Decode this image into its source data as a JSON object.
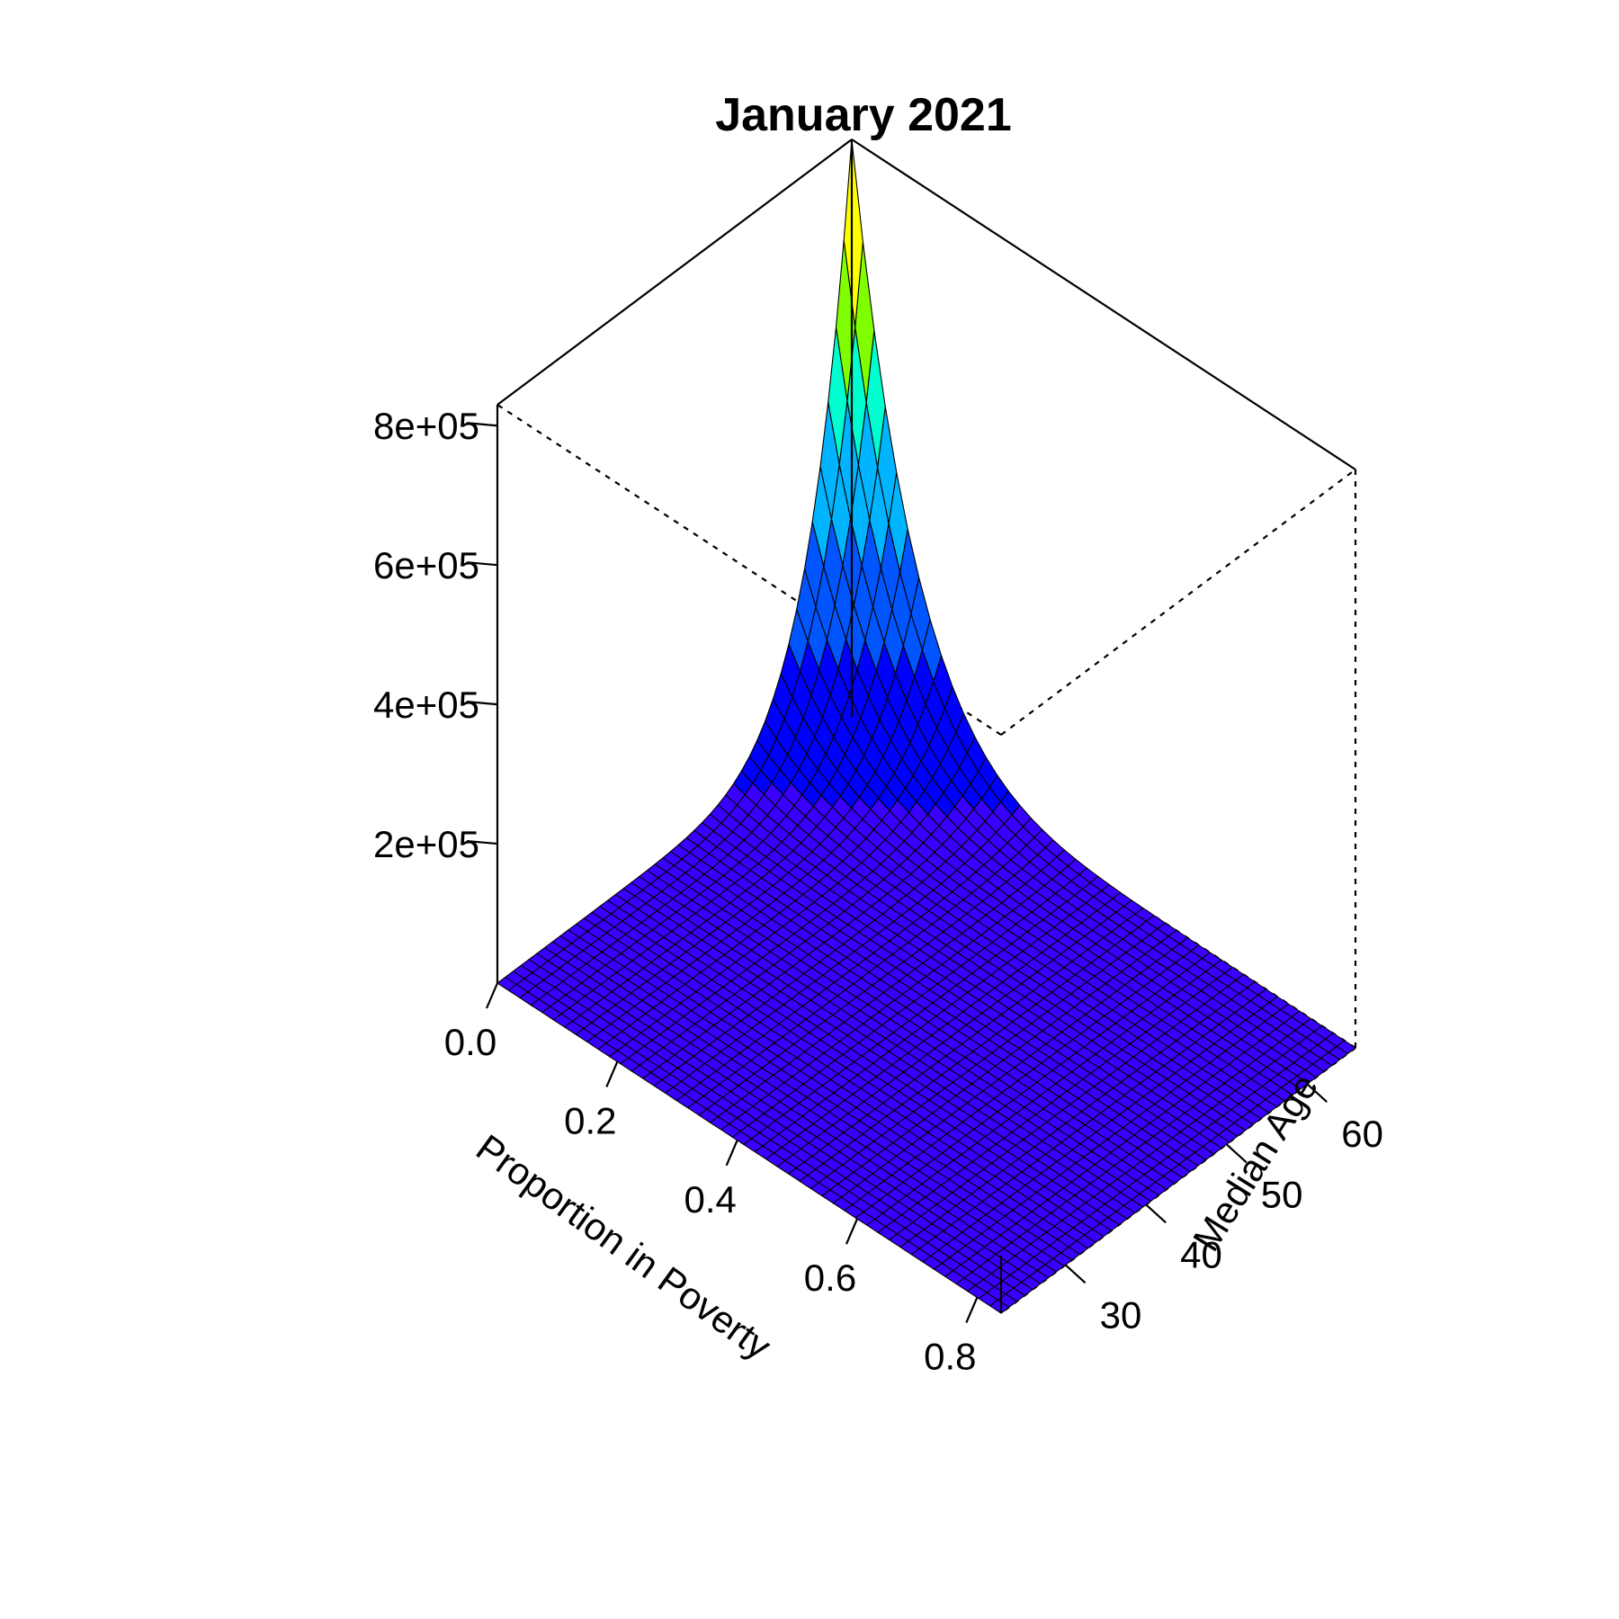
{
  "chart_data": {
    "type": "surface3d",
    "title": "January 2021",
    "xlabel": "Proportion in Poverty",
    "ylabel": "Median Age",
    "zlabel": "",
    "x_range": [
      0.0,
      0.84
    ],
    "y_range": [
      22,
      66
    ],
    "z_range": [
      0,
      830000
    ],
    "x_ticks": [
      "0.0",
      "0.2",
      "0.4",
      "0.6",
      "0.8"
    ],
    "y_ticks": [
      "30",
      "40",
      "50",
      "60"
    ],
    "z_ticks": [
      "2e+05",
      "4e+05",
      "6e+05",
      "8e+05"
    ],
    "grid_size": 45,
    "surface_note_values": {
      "corner_low_poverty_high_age": 830000,
      "corner_high_poverty_high_age": 0,
      "corner_low_poverty_low_age": 0,
      "corner_high_poverty_low_age": 0
    },
    "color_scale": [
      "#3a00ff",
      "#0000ff",
      "#0055ff",
      "#00b4ff",
      "#00ffd0",
      "#7fff00",
      "#ffff00"
    ]
  }
}
